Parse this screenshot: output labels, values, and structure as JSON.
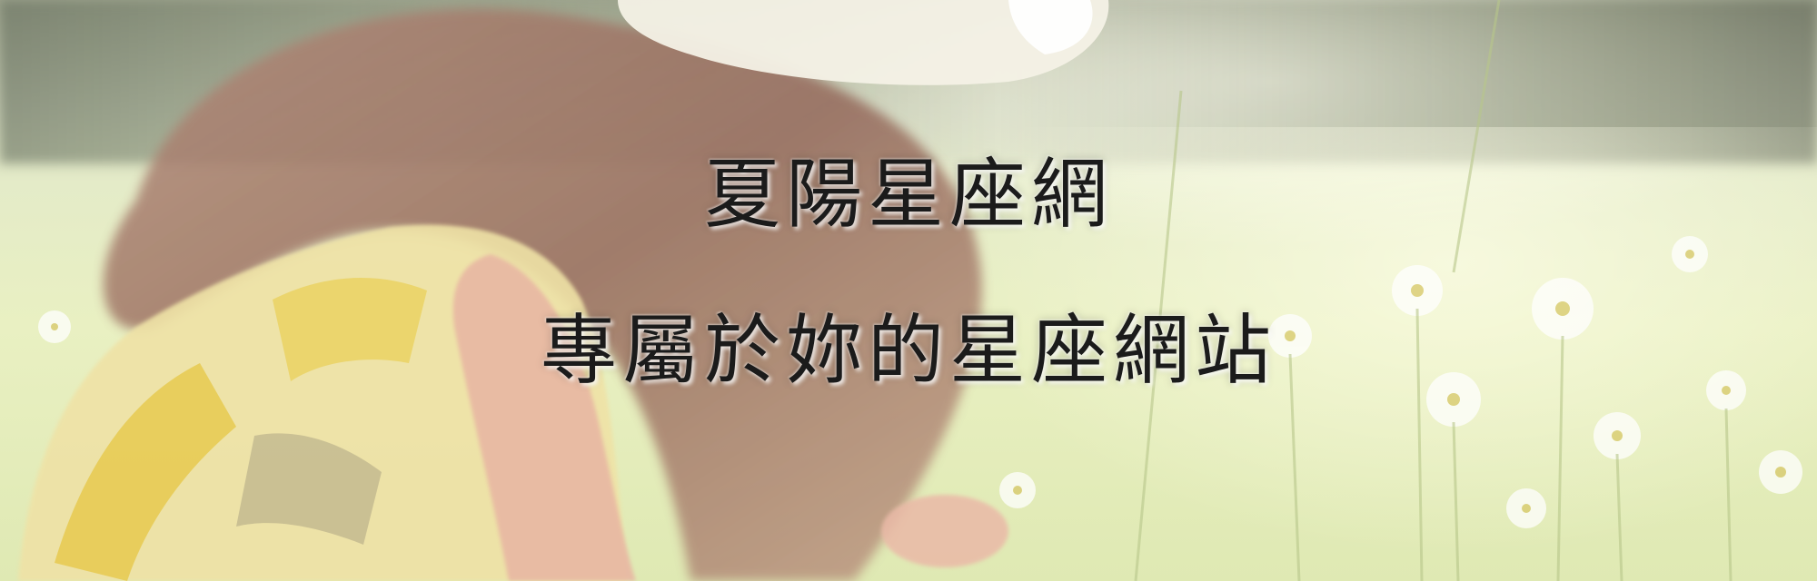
{
  "banner": {
    "title_line_1": "夏陽星座網",
    "title_line_2": "專屬於妳的星座網站",
    "background_image": "girl-in-hat-picking-daisies-in-sunny-meadow",
    "colors": {
      "text": "#1b1b1b",
      "meadow": "#e4ebc8",
      "dress_yellow": "#e9c84a",
      "hair": "#a07868",
      "hat": "#f2efe2"
    }
  }
}
